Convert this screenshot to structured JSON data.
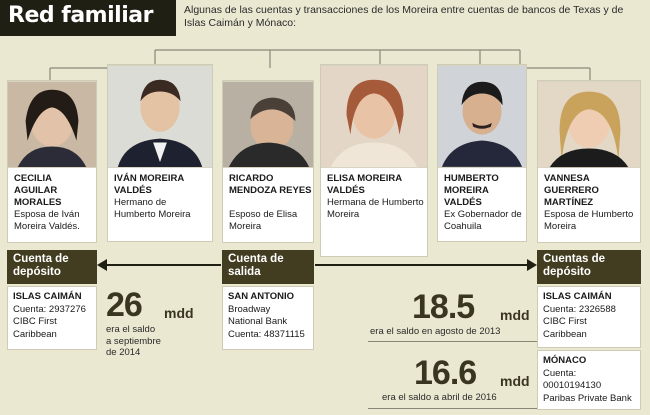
{
  "header": {
    "title": "Red familiar",
    "subtitle": "Algunas de las cuentas y transacciones de los Moreira entre cuentas de bancos de Texas y de Islas Caimán y Mónaco:"
  },
  "people": [
    {
      "name": "CECILIA AGUILAR MORALES",
      "role": "Esposa de Iván Moreira Valdés."
    },
    {
      "name": "IVÁN MOREIRA VALDÉS",
      "role": "Hermano de Humberto Moreira"
    },
    {
      "name": "RICARDO MENDOZA REYES",
      "role": "Esposo de Elisa Moreira"
    },
    {
      "name": "ELISA MOREIRA VALDÉS",
      "role": "Hermana de Humberto Moreira"
    },
    {
      "name": "HUMBERTO MOREIRA VALDÉS",
      "role": "Ex Gobernador de Coahuila"
    },
    {
      "name": "VANNESA GUERRERO MARTÍNEZ",
      "role": "Esposa de Humberto Moreira"
    }
  ],
  "accounts": {
    "left_label": "Cuenta de depósito",
    "center_label": "Cuenta de salida",
    "right_label": "Cuentas de depósito",
    "left_box": {
      "bank": "ISLAS CAIMÁN",
      "line1": "Cuenta: 2937276",
      "line2": "CIBC First",
      "line3": "Caribbean"
    },
    "center_box": {
      "bank": "SAN ANTONIO",
      "line1": "Broadway",
      "line2": "National Bank",
      "line3": "Cuenta: 48371115"
    },
    "right_box1": {
      "bank": "ISLAS CAIMÁN",
      "line1": "Cuenta: 2326588",
      "line2": "CIBC First",
      "line3": "Caribbean"
    },
    "right_box2": {
      "bank": "MÓNACO",
      "line1": "Cuenta:",
      "line2": "00010194130",
      "line3": "Paribas Private Bank"
    }
  },
  "balances": [
    {
      "amount": "26",
      "unit": "mdd",
      "note1": "era el saldo",
      "note2": "a septiembre",
      "note3": "de 2014"
    },
    {
      "amount": "18.5",
      "unit": "mdd",
      "note": "era el saldo en agosto de 2013"
    },
    {
      "amount": "16.6",
      "unit": "mdd",
      "note": "era el saldo a abril de 2016"
    }
  ],
  "colors": {
    "label_bg": "#423d20",
    "header_bg": "#201f14",
    "page_bg": "#ebe8d2"
  }
}
